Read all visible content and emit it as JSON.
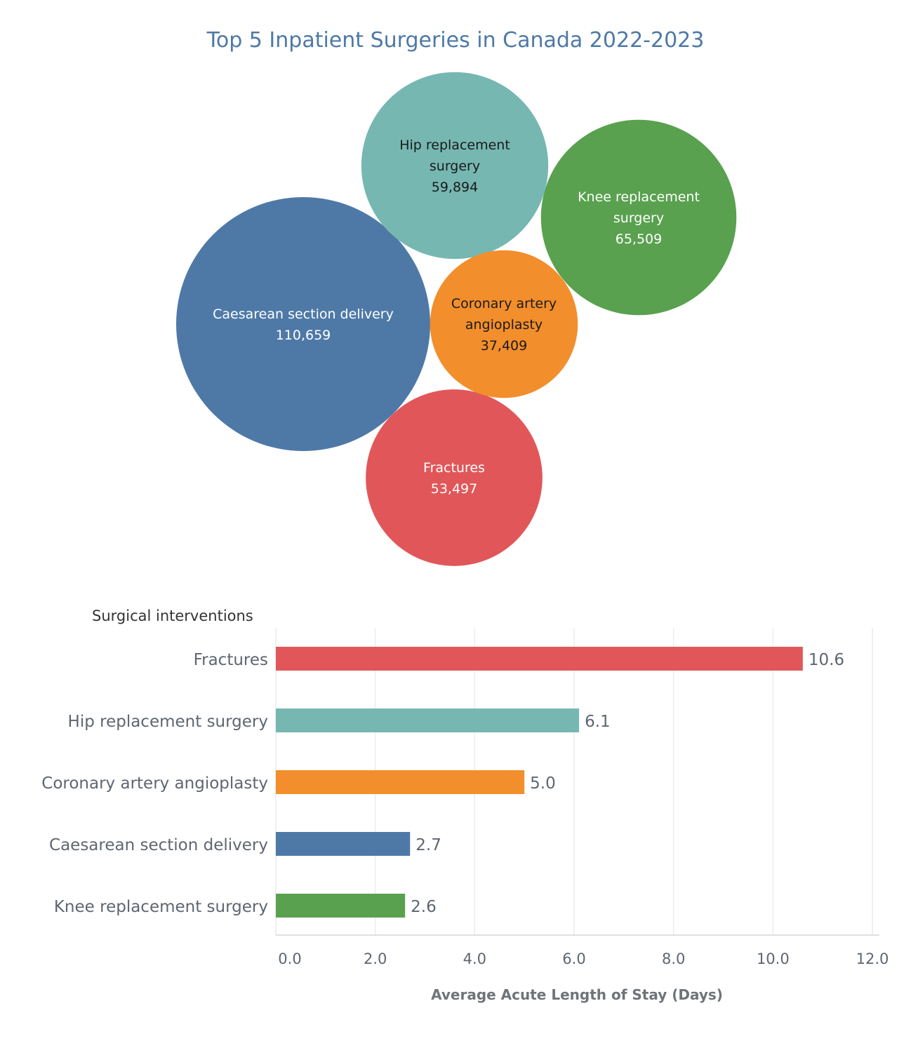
{
  "chart_data": [
    {
      "type": "bubble",
      "title": "Top 5 Inpatient Surgeries in Canada 2022-2023",
      "points": [
        {
          "label": [
            "Caesarean section delivery"
          ],
          "value": 110659,
          "value_text": "110,659",
          "color": "#4e79a7",
          "text_color": "#ffffff"
        },
        {
          "label": [
            "Knee replacement",
            "surgery"
          ],
          "value": 65509,
          "value_text": "65,509",
          "color": "#59a14f",
          "text_color": "#ffffff"
        },
        {
          "label": [
            "Hip replacement",
            "surgery"
          ],
          "value": 59894,
          "value_text": "59,894",
          "color": "#76b7b2",
          "text_color": "#1a1a1a"
        },
        {
          "label": [
            "Fractures"
          ],
          "value": 53497,
          "value_text": "53,497",
          "color": "#e15759",
          "text_color": "#ffffff"
        },
        {
          "label": [
            "Coronary artery",
            "angioplasty"
          ],
          "value": 37409,
          "value_text": "37,409",
          "color": "#f28e2b",
          "text_color": "#1a1a1a"
        }
      ]
    },
    {
      "type": "bar",
      "orientation": "horizontal",
      "category_header": "Surgical interventions",
      "categories": [
        "Fractures",
        "Hip replacement surgery",
        "Coronary artery angioplasty",
        "Caesarean section delivery",
        "Knee replacement surgery"
      ],
      "values": [
        10.6,
        6.1,
        5.0,
        2.7,
        2.6
      ],
      "value_labels": [
        "10.6",
        "6.1",
        "5.0",
        "2.7",
        "2.6"
      ],
      "colors": [
        "#e15759",
        "#76b7b2",
        "#f28e2b",
        "#4e79a7",
        "#59a14f"
      ],
      "xlabel": "Average Acute Length of Stay (Days)",
      "xlim": [
        0,
        12
      ],
      "xticks": [
        "0.0",
        "2.0",
        "4.0",
        "6.0",
        "8.0",
        "10.0",
        "12.0"
      ],
      "grid": true
    }
  ]
}
